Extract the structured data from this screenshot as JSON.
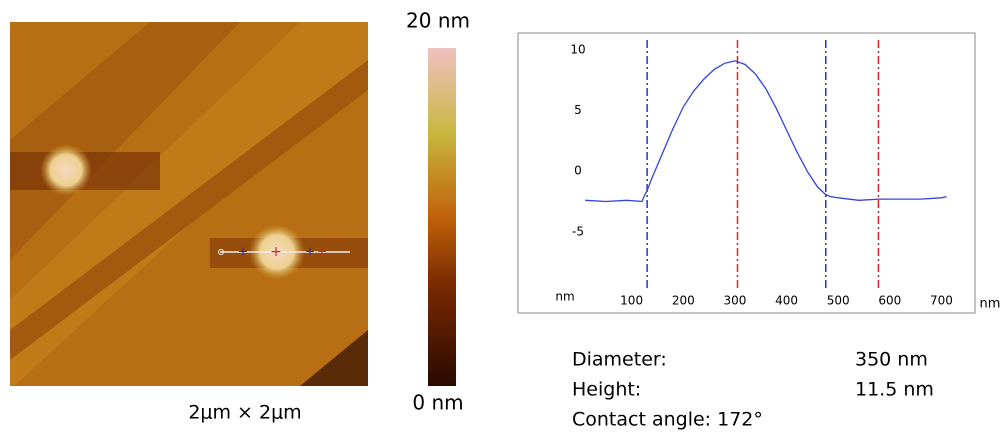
{
  "image": {
    "caption": "2μm × 2μm"
  },
  "colorbar": {
    "top_label": "20 nm",
    "bottom_label": "0 nm"
  },
  "chart_data": {
    "type": "line",
    "x_label": "nm",
    "y_label": "nm",
    "x": [
      10,
      50,
      90,
      120,
      125,
      130,
      140,
      160,
      180,
      200,
      220,
      240,
      260,
      280,
      300,
      320,
      340,
      360,
      380,
      400,
      420,
      440,
      460,
      475,
      485,
      500,
      540,
      580,
      620,
      660,
      700,
      710
    ],
    "series": [
      {
        "color": "#3344dd",
        "values": [
          -2.4,
          -2.5,
          -2.4,
          -2.5,
          -2.0,
          -1.6,
          -0.5,
          1.5,
          3.5,
          5.3,
          6.6,
          7.6,
          8.4,
          8.9,
          9.1,
          8.8,
          8.0,
          6.8,
          5.2,
          3.4,
          1.6,
          0.0,
          -1.3,
          -1.9,
          -2.1,
          -2.2,
          -2.4,
          -2.3,
          -2.3,
          -2.3,
          -2.2,
          -2.1
        ]
      }
    ],
    "markers": [
      {
        "value": 130,
        "color": "#2233dd"
      },
      {
        "value": 305,
        "color": "#dd2222"
      },
      {
        "value": 476,
        "color": "#2233dd"
      },
      {
        "value": 578,
        "color": "#dd2222"
      }
    ],
    "xlim": [
      0,
      765
    ],
    "ylim": [
      -11.7,
      11.4
    ],
    "xticks": [
      100,
      200,
      300,
      400,
      500,
      600,
      700
    ],
    "yticks": [
      10,
      5,
      0,
      -5
    ]
  },
  "measurements": {
    "rows": [
      [
        "Diameter:",
        "350 nm"
      ],
      [
        "Height:",
        "11.5 nm"
      ],
      [
        "Contact angle: 172°"
      ]
    ]
  }
}
